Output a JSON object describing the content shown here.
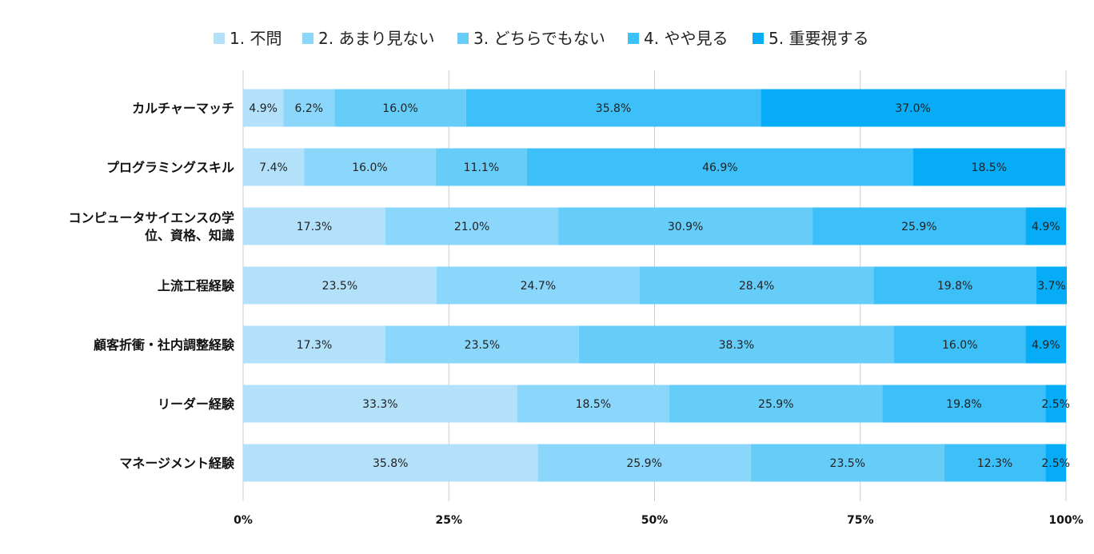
{
  "chart_data": {
    "type": "bar",
    "orientation": "horizontal",
    "stacked": "percent",
    "title": "",
    "xlabel": "",
    "ylabel": "",
    "xlim": [
      0,
      100
    ],
    "x_ticks": [
      "0%",
      "25%",
      "50%",
      "75%",
      "100%"
    ],
    "grid": true,
    "legend_position": "top",
    "categories": [
      [
        "カルチャーマッチ"
      ],
      [
        "プログラミングスキル"
      ],
      [
        "コンピュータサイエンスの学",
        "位、資格、知識"
      ],
      [
        "上流工程経験"
      ],
      [
        "顧客折衝・社内調整経験"
      ],
      [
        "リーダー経験"
      ],
      [
        "マネージメント経験"
      ]
    ],
    "series": [
      {
        "name": "1. 不問",
        "color": "#b3e1fa",
        "values": [
          4.9,
          7.4,
          17.3,
          23.5,
          17.3,
          33.3,
          35.8
        ],
        "labels": [
          "4.9%",
          "7.4%",
          "17.3%",
          "23.5%",
          "17.3%",
          "33.3%",
          "35.8%"
        ]
      },
      {
        "name": "2. あまり見ない",
        "color": "#8ad7fb",
        "values": [
          6.2,
          16.0,
          21.0,
          24.7,
          23.5,
          18.5,
          25.9
        ],
        "labels": [
          "6.2%",
          "16.0%",
          "21.0%",
          "24.7%",
          "23.5%",
          "18.5%",
          "25.9%"
        ]
      },
      {
        "name": "3. どちらでもない",
        "color": "#66cdf9",
        "values": [
          16.0,
          11.1,
          30.9,
          28.4,
          38.3,
          25.9,
          23.5
        ],
        "labels": [
          "16.0%",
          "11.1%",
          "30.9%",
          "28.4%",
          "38.3%",
          "25.9%",
          "23.5%"
        ]
      },
      {
        "name": "4. やや見る",
        "color": "#3dc0f8",
        "values": [
          35.8,
          46.9,
          25.9,
          19.8,
          16.0,
          19.8,
          12.3
        ],
        "labels": [
          "35.8%",
          "46.9%",
          "25.9%",
          "19.8%",
          "16.0%",
          "19.8%",
          "12.3%"
        ]
      },
      {
        "name": "5. 重要視する",
        "color": "#06acf6",
        "values": [
          37.0,
          18.5,
          4.9,
          3.7,
          4.9,
          2.5,
          2.5
        ],
        "labels": [
          "37.0%",
          "18.5%",
          "4.9%",
          "3.7%",
          "4.9%",
          "2.5%",
          "2.5%"
        ]
      }
    ]
  }
}
